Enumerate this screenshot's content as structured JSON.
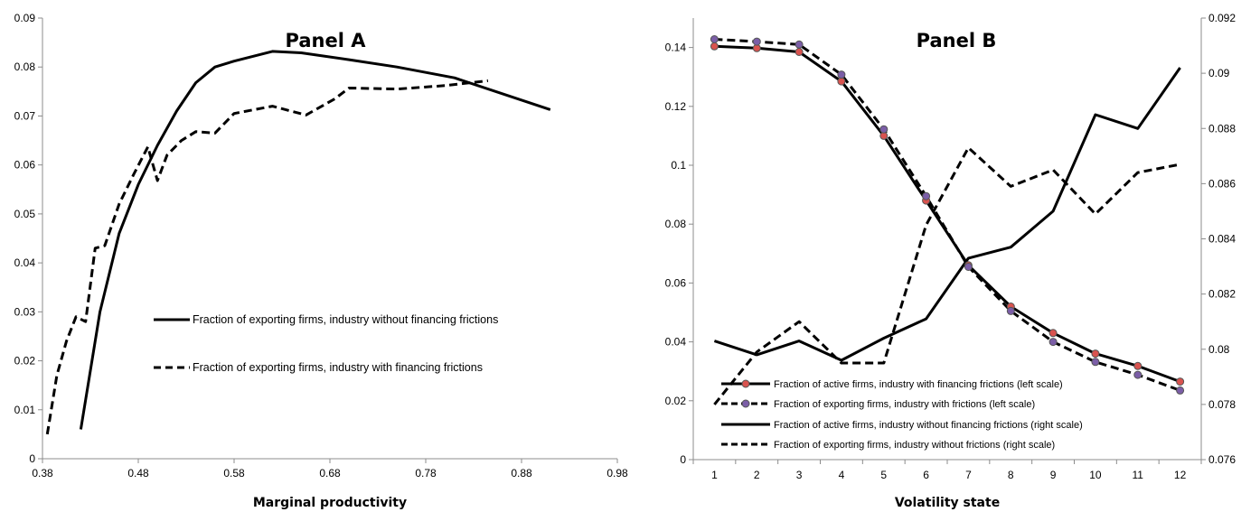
{
  "chart_data": [
    {
      "type": "line",
      "title": "Panel A",
      "xlabel": "Marginal productivity",
      "ylabel": "",
      "xlim": [
        0.38,
        0.98
      ],
      "ylim": [
        0,
        0.09
      ],
      "xticks": [
        "0.38",
        "0.48",
        "0.58",
        "0.68",
        "0.78",
        "0.88",
        "0.98"
      ],
      "yticks": [
        "0",
        "0.01",
        "0.02",
        "0.03",
        "0.04",
        "0.05",
        "0.06",
        "0.07",
        "0.08",
        "0.09"
      ],
      "legend_position": "center-right",
      "series": [
        {
          "name": "Fraction of exporting firms, industry without financing frictions",
          "style": "solid",
          "x": [
            0.42,
            0.44,
            0.46,
            0.48,
            0.5,
            0.52,
            0.54,
            0.56,
            0.58,
            0.6,
            0.62,
            0.65,
            0.7,
            0.75,
            0.81,
            0.91
          ],
          "y": [
            0.006,
            0.03,
            0.046,
            0.056,
            0.064,
            0.071,
            0.0768,
            0.08,
            0.0812,
            0.0822,
            0.0832,
            0.0829,
            0.0815,
            0.08,
            0.0778,
            0.0713
          ]
        },
        {
          "name": "Fraction of exporting firms, industry with financing frictions",
          "style": "dashed",
          "x": [
            0.385,
            0.395,
            0.405,
            0.415,
            0.425,
            0.435,
            0.445,
            0.46,
            0.475,
            0.49,
            0.5,
            0.51,
            0.525,
            0.54,
            0.56,
            0.58,
            0.62,
            0.655,
            0.685,
            0.7,
            0.75,
            0.8,
            0.845
          ],
          "y": [
            0.005,
            0.017,
            0.024,
            0.029,
            0.028,
            0.043,
            0.0435,
            0.052,
            0.058,
            0.0637,
            0.0568,
            0.062,
            0.065,
            0.0668,
            0.0665,
            0.0705,
            0.072,
            0.0702,
            0.0735,
            0.0757,
            0.0755,
            0.0762,
            0.0772
          ]
        }
      ]
    },
    {
      "type": "line",
      "title": "Panel B",
      "xlabel": "Volatility state",
      "ylabel": "",
      "categories": [
        "1",
        "2",
        "3",
        "4",
        "5",
        "6",
        "7",
        "8",
        "9",
        "10",
        "11",
        "12"
      ],
      "ylim_left": [
        0,
        0.15
      ],
      "ylim_right": [
        0.076,
        0.092
      ],
      "yticks_left": [
        "0",
        "0.02",
        "0.04",
        "0.06",
        "0.08",
        "0.1",
        "0.12",
        "0.14"
      ],
      "yticks_right": [
        "0.076",
        "0.078",
        "0.08",
        "0.082",
        "0.084",
        "0.086",
        "0.088",
        "0.09",
        "0.092"
      ],
      "legend_position": "bottom-left",
      "series": [
        {
          "name": "Fraction of active firms, industry with financing frictions (left scale)",
          "style": "solid-markers",
          "axis": "left",
          "marker_color": "#d9534f",
          "values": [
            0.1404,
            0.1398,
            0.1385,
            0.1285,
            0.11,
            0.088,
            0.066,
            0.052,
            0.043,
            0.036,
            0.0318,
            0.0265
          ]
        },
        {
          "name": "Fraction of exporting firms, industry with frictions (left scale)",
          "style": "dashed-markers",
          "axis": "left",
          "marker_color": "#7b5ea7",
          "values": [
            0.1428,
            0.142,
            0.141,
            0.1308,
            0.1122,
            0.0895,
            0.0655,
            0.0505,
            0.04,
            0.0332,
            0.0288,
            0.0235
          ]
        },
        {
          "name": "Fraction of active firms, industry without financing frictions (right scale)",
          "style": "solid",
          "axis": "right",
          "values": [
            0.0803,
            0.0798,
            0.0803,
            0.0796,
            0.0804,
            0.0811,
            0.0833,
            0.0837,
            0.085,
            0.0885,
            0.088,
            0.0902
          ]
        },
        {
          "name": "Fraction of exporting firms, industry without frictions (right scale)",
          "style": "dashed",
          "axis": "right",
          "values": [
            0.078,
            0.0799,
            0.081,
            0.0795,
            0.0795,
            0.0845,
            0.0873,
            0.0859,
            0.0865,
            0.0849,
            0.0864,
            0.0867
          ]
        }
      ]
    }
  ]
}
